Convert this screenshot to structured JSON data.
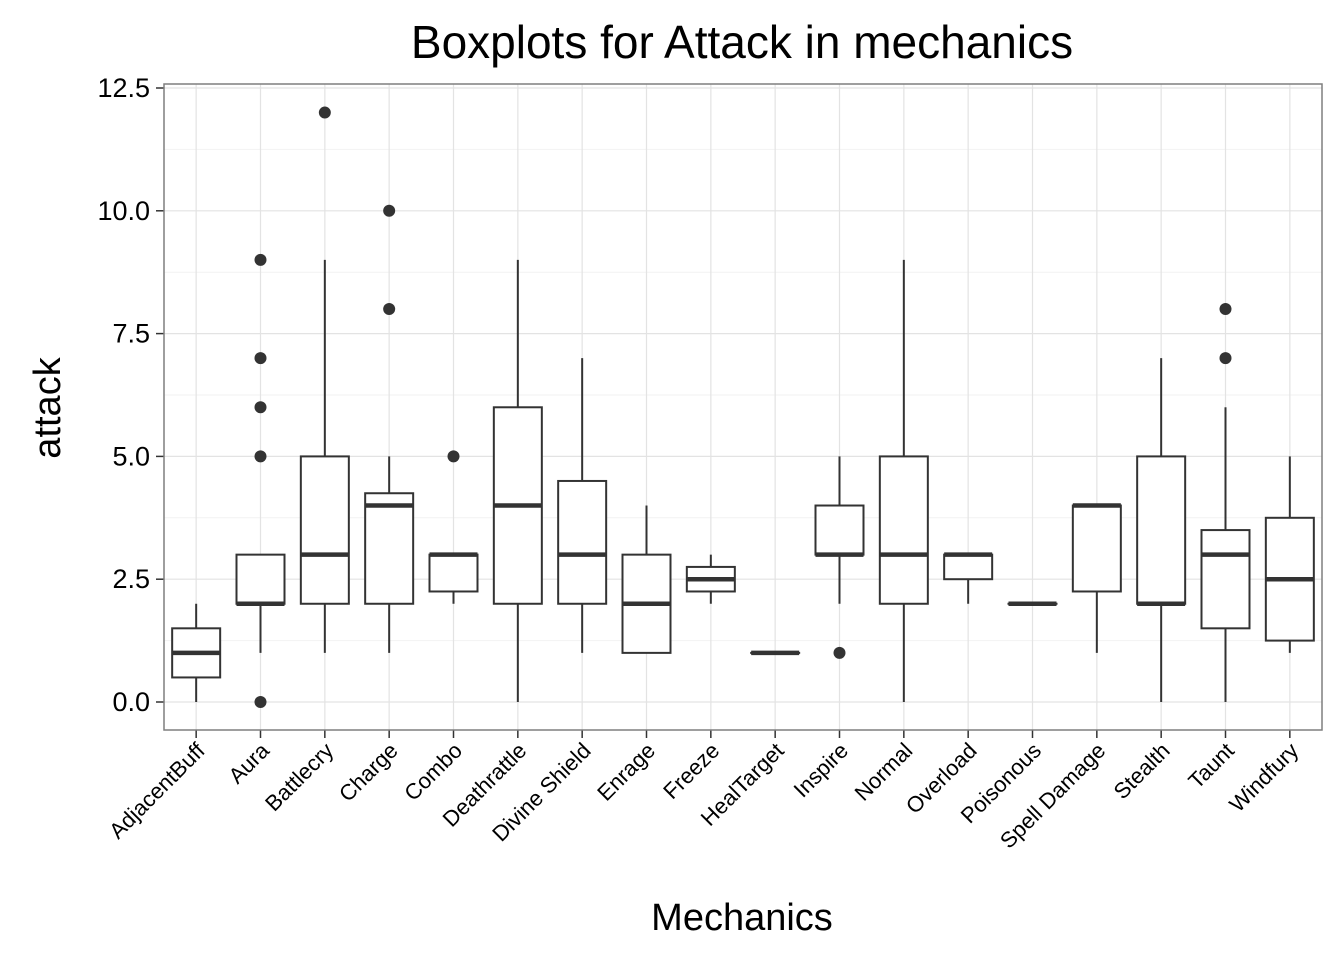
{
  "chart_data": {
    "type": "boxplot",
    "title": "Boxplots for Attack in mechanics",
    "xlabel": "Mechanics",
    "ylabel": "attack",
    "ylim": [
      -0.6,
      12.5
    ],
    "y_ticks": [
      "0.0",
      "2.5",
      "5.0",
      "7.5",
      "10.0",
      "12.5"
    ],
    "grid": true,
    "categories": [
      "AdjacentBuff",
      "Aura",
      "Battlecry",
      "Charge",
      "Combo",
      "Deathrattle",
      "Divine Shield",
      "Enrage",
      "Freeze",
      "HealTarget",
      "Inspire",
      "Normal",
      "Overload",
      "Poisonous",
      "Spell Damage",
      "Stealth",
      "Taunt",
      "Windfury"
    ],
    "boxes": [
      {
        "min": 0,
        "q1": 0.5,
        "median": 1,
        "q3": 1.5,
        "max": 2,
        "outliers": []
      },
      {
        "min": 1,
        "q1": 2,
        "median": 2,
        "q3": 3,
        "max": 3,
        "outliers": [
          9,
          7,
          6,
          5,
          0
        ]
      },
      {
        "min": 1,
        "q1": 2,
        "median": 3,
        "q3": 5,
        "max": 9,
        "outliers": [
          12
        ]
      },
      {
        "min": 1,
        "q1": 2,
        "median": 4,
        "q3": 4.25,
        "max": 5,
        "outliers": [
          10,
          8
        ]
      },
      {
        "min": 2,
        "q1": 2.25,
        "median": 3,
        "q3": 3,
        "max": 3,
        "outliers": [
          5
        ]
      },
      {
        "min": 0,
        "q1": 2,
        "median": 4,
        "q3": 6,
        "max": 9,
        "outliers": []
      },
      {
        "min": 1,
        "q1": 2,
        "median": 3,
        "q3": 4.5,
        "max": 7,
        "outliers": []
      },
      {
        "min": 1,
        "q1": 1,
        "median": 2,
        "q3": 3,
        "max": 4,
        "outliers": []
      },
      {
        "min": 2,
        "q1": 2.25,
        "median": 2.5,
        "q3": 2.75,
        "max": 3,
        "outliers": []
      },
      {
        "min": 1,
        "q1": 1,
        "median": 1,
        "q3": 1,
        "max": 1,
        "outliers": []
      },
      {
        "min": 2,
        "q1": 3,
        "median": 3,
        "q3": 4,
        "max": 5,
        "outliers": [
          1
        ]
      },
      {
        "min": 0,
        "q1": 2,
        "median": 3,
        "q3": 5,
        "max": 9,
        "outliers": []
      },
      {
        "min": 2,
        "q1": 2.5,
        "median": 3,
        "q3": 3,
        "max": 3,
        "outliers": []
      },
      {
        "min": 2,
        "q1": 2,
        "median": 2,
        "q3": 2,
        "max": 2,
        "outliers": []
      },
      {
        "min": 1,
        "q1": 2.25,
        "median": 4,
        "q3": 4,
        "max": 4,
        "outliers": []
      },
      {
        "min": 0,
        "q1": 2,
        "median": 2,
        "q3": 5,
        "max": 7,
        "outliers": []
      },
      {
        "min": 0,
        "q1": 1.5,
        "median": 3,
        "q3": 3.5,
        "max": 6,
        "outliers": [
          8,
          7
        ]
      },
      {
        "min": 1,
        "q1": 1.25,
        "median": 2.5,
        "q3": 3.75,
        "max": 5,
        "outliers": []
      }
    ]
  }
}
